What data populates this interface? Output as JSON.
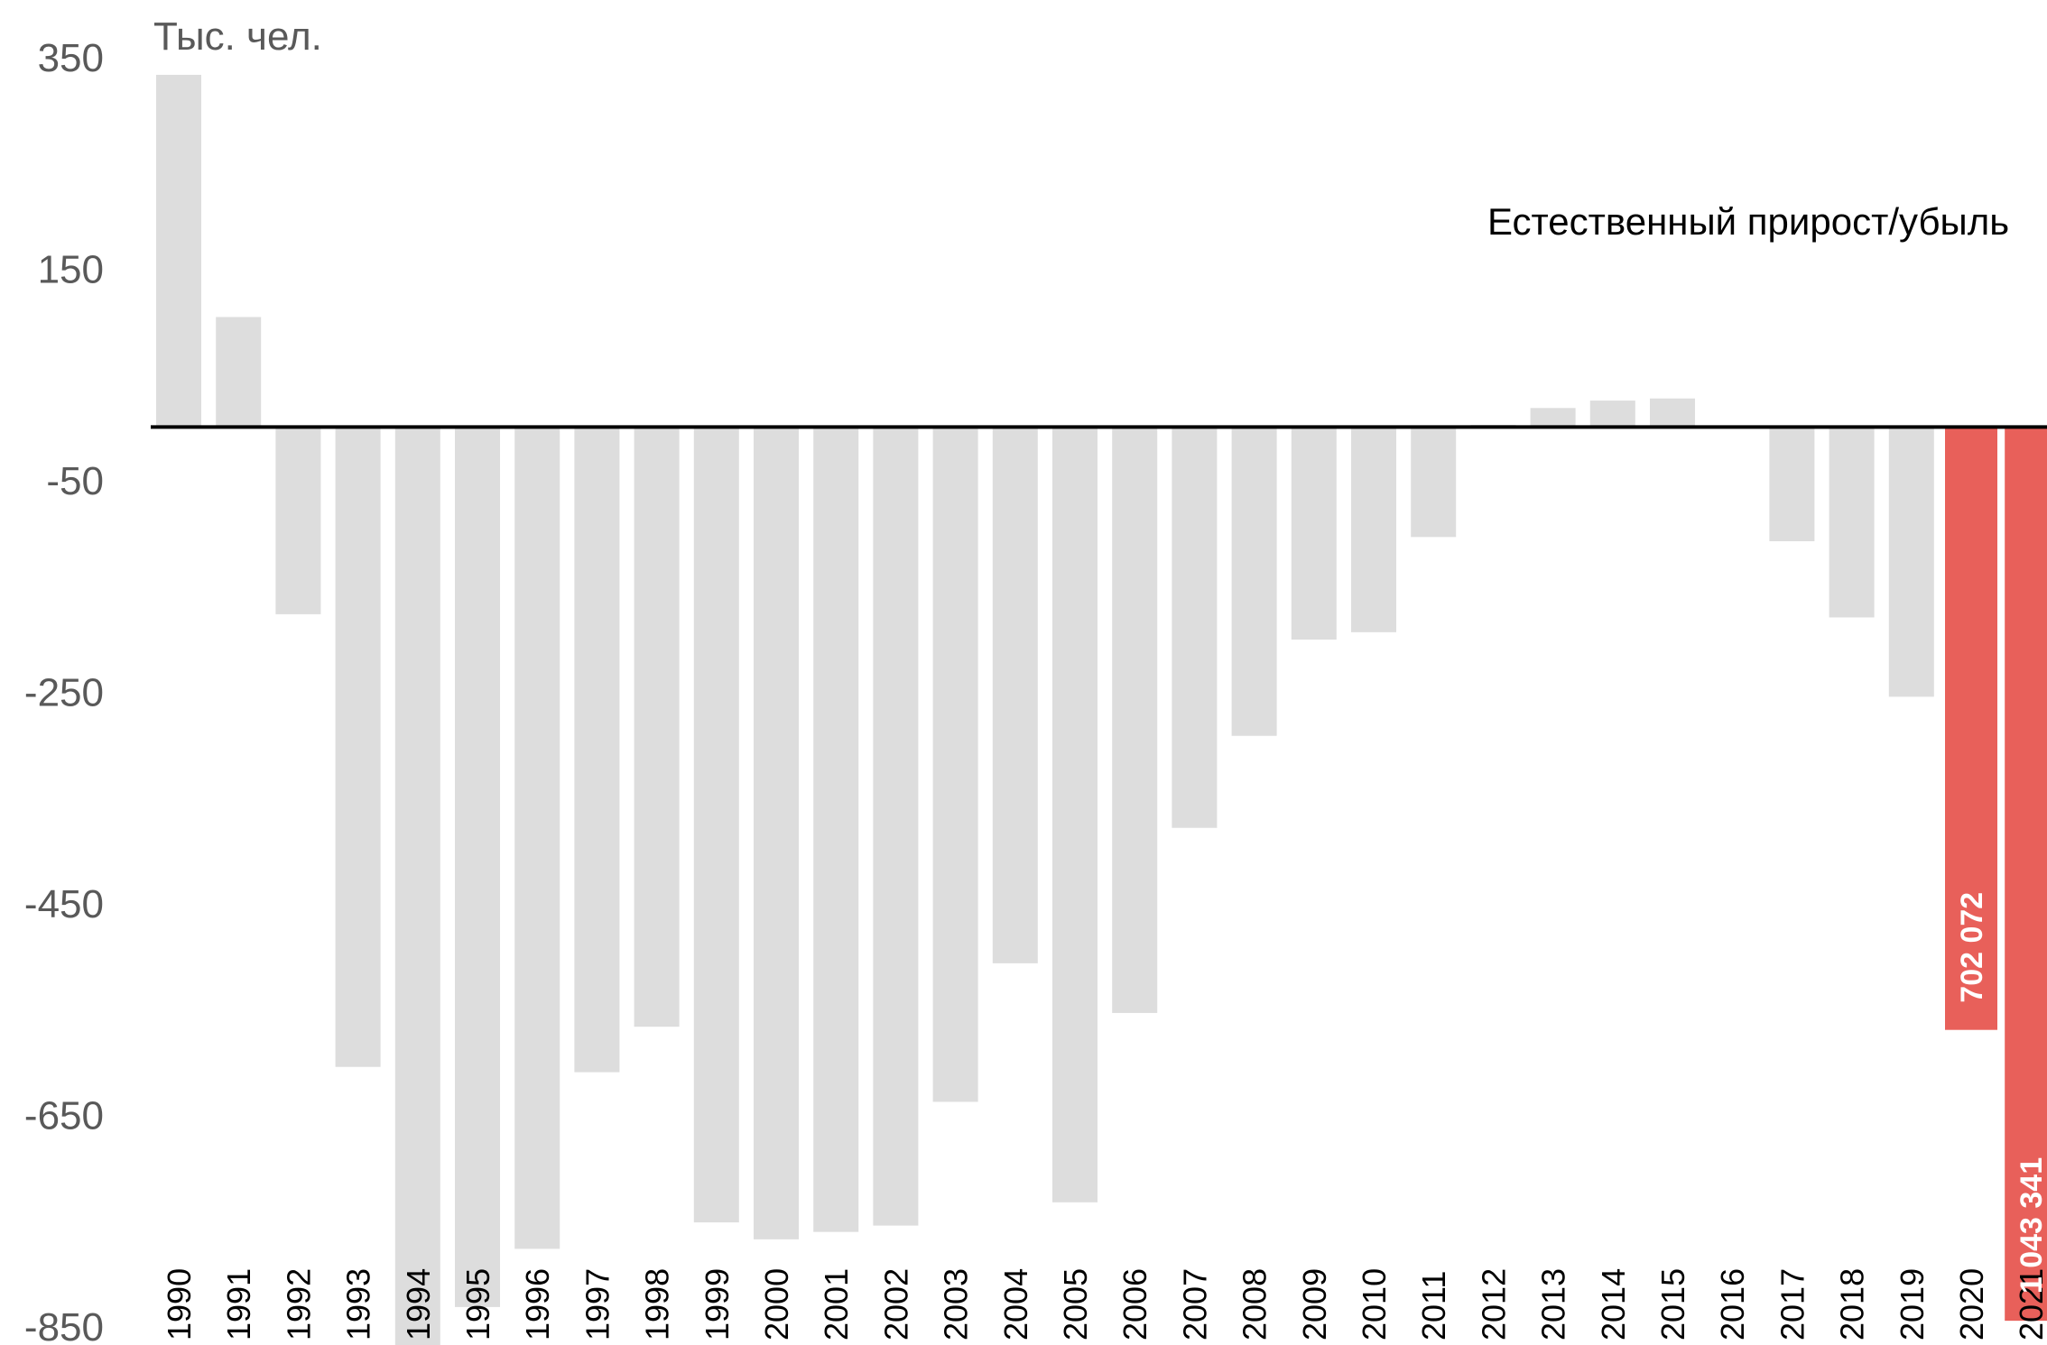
{
  "chart_data": {
    "type": "bar",
    "unit_label": "Тыс. чел.",
    "legend_label": "Естественный прирост/убыль",
    "ylim": [
      -850,
      350
    ],
    "y_ticks": [
      "350",
      "150",
      "-50",
      "-250",
      "-450",
      "-650",
      "-850"
    ],
    "categories": [
      "1990",
      "1991",
      "1992",
      "1993",
      "1994",
      "1995",
      "1996",
      "1997",
      "1998",
      "1999",
      "2000",
      "2001",
      "2002",
      "2003",
      "2004",
      "2005",
      "2006",
      "2007",
      "2008",
      "2009",
      "2010",
      "2011",
      "2012",
      "2013",
      "2014",
      "2015",
      "2016",
      "2017",
      "2018",
      "2019",
      "2020",
      "2021"
    ],
    "values": [
      333,
      104,
      -177,
      -605,
      -873,
      -832,
      -777,
      -610,
      -567,
      -752,
      -768,
      -761,
      -755,
      -638,
      -507,
      -733,
      -554,
      -379,
      -292,
      -201,
      -194,
      -104,
      2,
      18,
      25,
      27,
      0,
      -108,
      -180,
      -255,
      -570,
      -845
    ],
    "highlight": {
      "2020": "702 072",
      "2021": "1 043 341"
    },
    "colors": {
      "bar": "#dddddd",
      "highlight": "#e8605a",
      "axis": "#000000"
    },
    "grid": false
  }
}
